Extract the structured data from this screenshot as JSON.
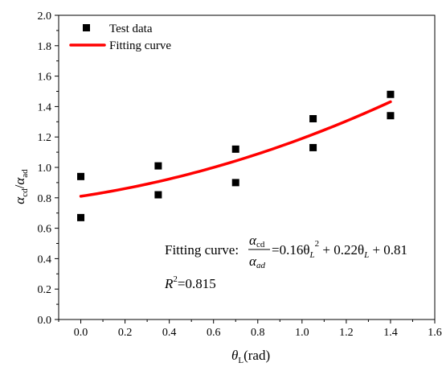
{
  "chart_data": {
    "type": "scatter",
    "xlabel": {
      "symbol": "θ",
      "sub": "L",
      "unit": "(rad)"
    },
    "ylabel": {
      "num_symbol": "α",
      "num_sub": "cd",
      "sep": "/",
      "den_symbol": "α",
      "den_sub": "ad"
    },
    "xlim": [
      -0.1,
      1.6
    ],
    "ylim": [
      0.0,
      2.0
    ],
    "xticks": [
      "0.0",
      "0.2",
      "0.4",
      "0.6",
      "0.8",
      "1.0",
      "1.2",
      "1.4",
      "1.6"
    ],
    "yticks": [
      "0.0",
      "0.2",
      "0.4",
      "0.6",
      "0.8",
      "1.0",
      "1.2",
      "1.4",
      "1.6",
      "1.8",
      "2.0"
    ],
    "grid": false,
    "legend_position": "top-left",
    "series": [
      {
        "name": "Test data",
        "kind": "scatter",
        "marker": "square",
        "color": "#000000",
        "points": [
          {
            "x": 0.0,
            "y": 0.94
          },
          {
            "x": 0.0,
            "y": 0.67
          },
          {
            "x": 0.35,
            "y": 1.01
          },
          {
            "x": 0.35,
            "y": 0.82
          },
          {
            "x": 0.7,
            "y": 1.12
          },
          {
            "x": 0.7,
            "y": 0.9
          },
          {
            "x": 1.05,
            "y": 1.32
          },
          {
            "x": 1.05,
            "y": 1.13
          },
          {
            "x": 1.4,
            "y": 1.48
          },
          {
            "x": 1.4,
            "y": 1.34
          }
        ]
      },
      {
        "name": "Fitting curve",
        "kind": "line",
        "color": "#ff0000",
        "coefficients": {
          "a": 0.16,
          "b": 0.22,
          "c": 0.81
        },
        "domain": [
          0.0,
          1.4
        ]
      }
    ],
    "annotation": {
      "label": "Fitting curve:",
      "frac_num": "α",
      "frac_num_sub": "cd",
      "frac_den": "α",
      "frac_den_sub": "ad",
      "term1": "=0.16θ",
      "term1_sub": "L",
      "term1_sup": "2",
      "term2": " + 0.22θ",
      "term2_sub": "L",
      "term3": " + 0.81",
      "r2_symbol": "R",
      "r2_sup": "2",
      "r2_value": "=0.815"
    }
  }
}
